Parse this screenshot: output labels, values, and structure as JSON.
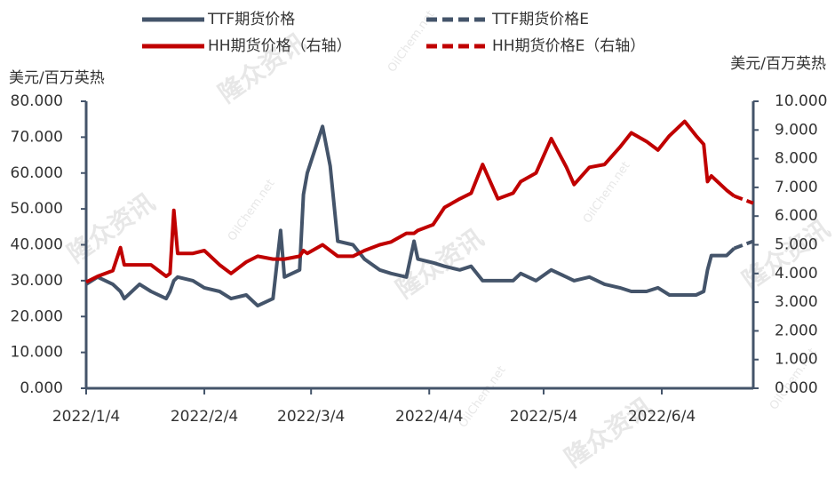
{
  "chart_data": {
    "type": "line",
    "y_label": "美元/百万英热",
    "y2_label": "美元/百万英热",
    "watermarks": [
      "隆众资讯",
      "OilChem.net"
    ],
    "x": [
      "2022/1/4",
      "2022/1/7",
      "2022/1/11",
      "2022/1/13",
      "2022/1/14",
      "2022/1/18",
      "2022/1/21",
      "2022/1/25",
      "2022/1/26",
      "2022/1/27",
      "2022/1/28",
      "2022/2/1",
      "2022/2/4",
      "2022/2/8",
      "2022/2/11",
      "2022/2/15",
      "2022/2/18",
      "2022/2/22",
      "2022/2/24",
      "2022/2/25",
      "2022/3/1",
      "2022/3/2",
      "2022/3/3",
      "2022/3/7",
      "2022/3/9",
      "2022/3/11",
      "2022/3/15",
      "2022/3/18",
      "2022/3/22",
      "2022/3/25",
      "2022/3/29",
      "2022/3/31",
      "2022/4/1",
      "2022/4/5",
      "2022/4/8",
      "2022/4/12",
      "2022/4/15",
      "2022/4/18",
      "2022/4/22",
      "2022/4/26",
      "2022/4/28",
      "2022/5/2",
      "2022/5/6",
      "2022/5/10",
      "2022/5/12",
      "2022/5/16",
      "2022/5/20",
      "2022/5/24",
      "2022/5/27",
      "2022/5/31",
      "2022/6/3",
      "2022/6/6",
      "2022/6/10",
      "2022/6/13",
      "2022/6/15",
      "2022/6/16",
      "2022/6/17",
      "2022/6/21",
      "2022/6/23",
      "2022/6/28"
    ],
    "series": [
      {
        "name": "TTF期货价格",
        "color": "#44546a",
        "dash": false,
        "values": [
          29,
          31,
          29,
          27,
          25,
          29,
          27,
          25,
          27,
          30,
          31,
          30,
          28,
          27,
          25,
          26,
          23,
          25,
          44,
          31,
          33,
          54,
          60,
          73,
          62,
          41,
          40,
          36,
          33,
          32,
          31,
          41,
          36,
          35,
          34,
          33,
          34,
          30,
          30,
          30,
          32,
          30,
          33,
          31,
          30,
          31,
          29,
          28,
          27,
          27,
          28,
          26,
          26,
          26,
          27,
          33,
          37,
          37,
          39,
          null
        ]
      },
      {
        "name": "TTF期货价格E",
        "color": "#44546a",
        "dash": true,
        "values": [
          null,
          null,
          null,
          null,
          null,
          null,
          null,
          null,
          null,
          null,
          null,
          null,
          null,
          null,
          null,
          null,
          null,
          null,
          null,
          null,
          null,
          null,
          null,
          null,
          null,
          null,
          null,
          null,
          null,
          null,
          null,
          null,
          null,
          null,
          null,
          null,
          null,
          null,
          null,
          null,
          null,
          null,
          null,
          null,
          null,
          null,
          null,
          null,
          null,
          null,
          null,
          null,
          null,
          null,
          null,
          null,
          null,
          null,
          39,
          41
        ]
      },
      {
        "name": "HH期货价格（右轴）",
        "color": "#c00000",
        "dash": false,
        "axis": "y2",
        "values": [
          3.7,
          3.9,
          4.1,
          4.9,
          4.3,
          4.3,
          4.3,
          3.9,
          4.0,
          6.2,
          4.7,
          4.7,
          4.8,
          4.3,
          4.0,
          4.4,
          4.6,
          4.5,
          4.5,
          4.5,
          4.6,
          4.8,
          4.7,
          5.0,
          4.8,
          4.6,
          4.6,
          4.8,
          5.0,
          5.1,
          5.4,
          5.4,
          5.5,
          5.7,
          6.3,
          6.6,
          6.8,
          7.8,
          6.6,
          6.8,
          7.2,
          7.5,
          8.7,
          7.7,
          7.1,
          7.7,
          7.8,
          8.4,
          8.9,
          8.6,
          8.3,
          8.8,
          9.3,
          8.8,
          8.5,
          7.2,
          7.4,
          6.9,
          6.7,
          null
        ]
      },
      {
        "name": "HH期货价格E（右轴）",
        "color": "#c00000",
        "dash": true,
        "axis": "y2",
        "values": [
          null,
          null,
          null,
          null,
          null,
          null,
          null,
          null,
          null,
          null,
          null,
          null,
          null,
          null,
          null,
          null,
          null,
          null,
          null,
          null,
          null,
          null,
          null,
          null,
          null,
          null,
          null,
          null,
          null,
          null,
          null,
          null,
          null,
          null,
          null,
          null,
          null,
          null,
          null,
          null,
          null,
          null,
          null,
          null,
          null,
          null,
          null,
          null,
          null,
          null,
          null,
          null,
          null,
          null,
          null,
          null,
          null,
          null,
          6.7,
          6.45
        ]
      }
    ],
    "xlim": [
      "2022/1/4",
      "2022/6/28"
    ],
    "xticks": [
      "2022/1/4",
      "2022/2/4",
      "2022/3/4",
      "2022/4/4",
      "2022/5/4",
      "2022/6/4"
    ],
    "ylim": [
      0,
      80
    ],
    "yticks": [
      {
        "value": 0,
        "label": "0.000"
      },
      {
        "value": 10,
        "label": "10.000"
      },
      {
        "value": 20,
        "label": "20.000"
      },
      {
        "value": 30,
        "label": "30.000"
      },
      {
        "value": 40,
        "label": "40.000"
      },
      {
        "value": 50,
        "label": "50.000"
      },
      {
        "value": 60,
        "label": "60.000"
      },
      {
        "value": 70,
        "label": "70.000"
      },
      {
        "value": 80,
        "label": "80.000"
      }
    ],
    "y2lim": [
      0,
      10
    ],
    "y2ticks": [
      {
        "value": 0,
        "label": "0.000"
      },
      {
        "value": 1,
        "label": "1.000"
      },
      {
        "value": 2,
        "label": "2.000"
      },
      {
        "value": 3,
        "label": "3.000"
      },
      {
        "value": 4,
        "label": "4.000"
      },
      {
        "value": 5,
        "label": "5.000"
      },
      {
        "value": 6,
        "label": "6.000"
      },
      {
        "value": 7,
        "label": "7.000"
      },
      {
        "value": 8,
        "label": "8.000"
      },
      {
        "value": 9,
        "label": "9.000"
      },
      {
        "value": 10,
        "label": "10.000"
      }
    ],
    "grid": false
  }
}
